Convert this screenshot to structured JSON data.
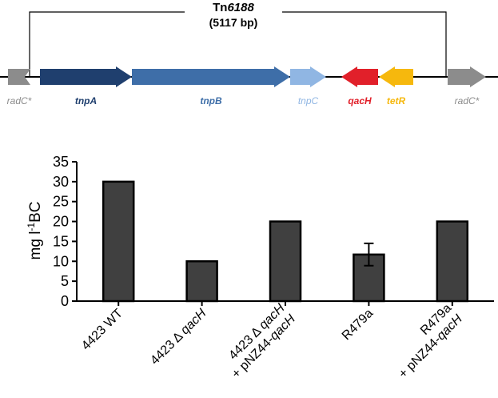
{
  "transposon": {
    "name_prefix": "Tn",
    "name_number": "6188",
    "size": "(5117 bp)",
    "genes": [
      {
        "label": "radC*",
        "color": "#8c8c8c",
        "text_color": "#8c8c8c",
        "direction": "left"
      },
      {
        "label": "tnpA",
        "color": "#1f3f6e",
        "text_color": "#1f3f6e",
        "direction": "right"
      },
      {
        "label": "tnpB",
        "color": "#3e6ea8",
        "text_color": "#3e6ea8",
        "direction": "right"
      },
      {
        "label": "tnpC",
        "color": "#90b6e3",
        "text_color": "#90b6e3",
        "direction": "right"
      },
      {
        "label": "qacH",
        "color": "#e1202a",
        "text_color": "#e1202a",
        "direction": "left"
      },
      {
        "label": "tetR",
        "color": "#f6b80d",
        "text_color": "#f6b80d",
        "direction": "left"
      },
      {
        "label": "radC*",
        "color": "#8c8c8c",
        "text_color": "#8c8c8c",
        "direction": "right"
      }
    ]
  },
  "chart_data": {
    "type": "bar",
    "ylabel_main": "mg l",
    "ylabel_sup": "-1",
    "ylabel_tail": "BC",
    "ylim": [
      0,
      35
    ],
    "yticks": [
      0,
      5,
      10,
      15,
      20,
      25,
      30,
      35
    ],
    "bar_color": "#404040",
    "categories": [
      {
        "parts": [
          {
            "t": "4423 WT",
            "i": false
          }
        ],
        "line2": []
      },
      {
        "parts": [
          {
            "t": "4423 Δ ",
            "i": false
          },
          {
            "t": "qacH",
            "i": true
          }
        ],
        "line2": []
      },
      {
        "parts": [
          {
            "t": "4423 Δ ",
            "i": false
          },
          {
            "t": "qacH",
            "i": true
          }
        ],
        "line2": [
          {
            "t": "+ pNZ44-",
            "i": false
          },
          {
            "t": "qacH",
            "i": true
          }
        ]
      },
      {
        "parts": [
          {
            "t": "R479a",
            "i": false
          }
        ],
        "line2": []
      },
      {
        "parts": [
          {
            "t": "R479a",
            "i": false
          }
        ],
        "line2": [
          {
            "t": "+ pNZ44-",
            "i": false
          },
          {
            "t": "qacH",
            "i": true
          }
        ]
      }
    ],
    "values": [
      30,
      10,
      20,
      11.7,
      20
    ],
    "errors": [
      null,
      null,
      null,
      2.8,
      null
    ]
  }
}
